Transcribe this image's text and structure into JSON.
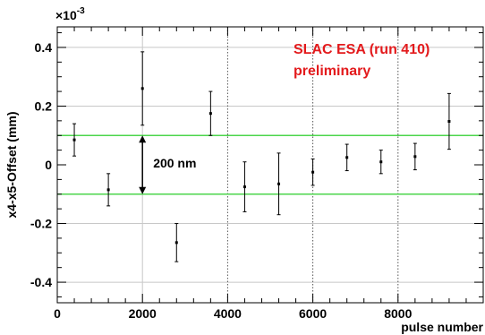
{
  "chart_data": {
    "type": "scatter",
    "title": "",
    "xlabel": "pulse number",
    "ylabel": "x4-x5-Offset (mm)",
    "y_multiplier_label": "×10",
    "y_multiplier_exponent": "-3",
    "xlim": [
      0,
      10000
    ],
    "ylim": [
      -0.47,
      0.47
    ],
    "x_ticks": [
      0,
      2000,
      4000,
      6000,
      8000
    ],
    "x_tick_labels": [
      "0",
      "2000",
      "4000",
      "6000",
      "8000"
    ],
    "y_ticks": [
      -0.4,
      -0.2,
      0,
      0.2,
      0.4
    ],
    "y_tick_labels": [
      "-0.4",
      "-0.2",
      "0",
      "0.2",
      "0.4"
    ],
    "grid": true,
    "points": [
      {
        "x": 400,
        "y": 0.085,
        "err": 0.055
      },
      {
        "x": 1200,
        "y": -0.085,
        "err": 0.055
      },
      {
        "x": 2000,
        "y": 0.26,
        "err": 0.125
      },
      {
        "x": 2800,
        "y": -0.265,
        "err": 0.065
      },
      {
        "x": 3600,
        "y": 0.175,
        "err": 0.075
      },
      {
        "x": 4400,
        "y": -0.075,
        "err": 0.085
      },
      {
        "x": 5200,
        "y": -0.065,
        "err": 0.105
      },
      {
        "x": 6000,
        "y": -0.025,
        "err": 0.045
      },
      {
        "x": 6800,
        "y": 0.025,
        "err": 0.045
      },
      {
        "x": 7600,
        "y": 0.01,
        "err": 0.04
      },
      {
        "x": 8400,
        "y": 0.028,
        "err": 0.045
      },
      {
        "x": 9200,
        "y": 0.148,
        "err": 0.095
      }
    ],
    "reference_lines": [
      {
        "y": 0.1,
        "color": "#4cd64c"
      },
      {
        "y": -0.1,
        "color": "#4cd64c"
      }
    ],
    "dotted_vertical_lines": [
      4000,
      6000,
      8000
    ],
    "range_arrow": {
      "x": 2000,
      "y_top": 0.1,
      "y_bottom": -0.1,
      "label": "200 nm"
    },
    "annotations": [
      "SLAC ESA (run 410)",
      "preliminary"
    ],
    "annotation_color": "#e31a1c"
  }
}
